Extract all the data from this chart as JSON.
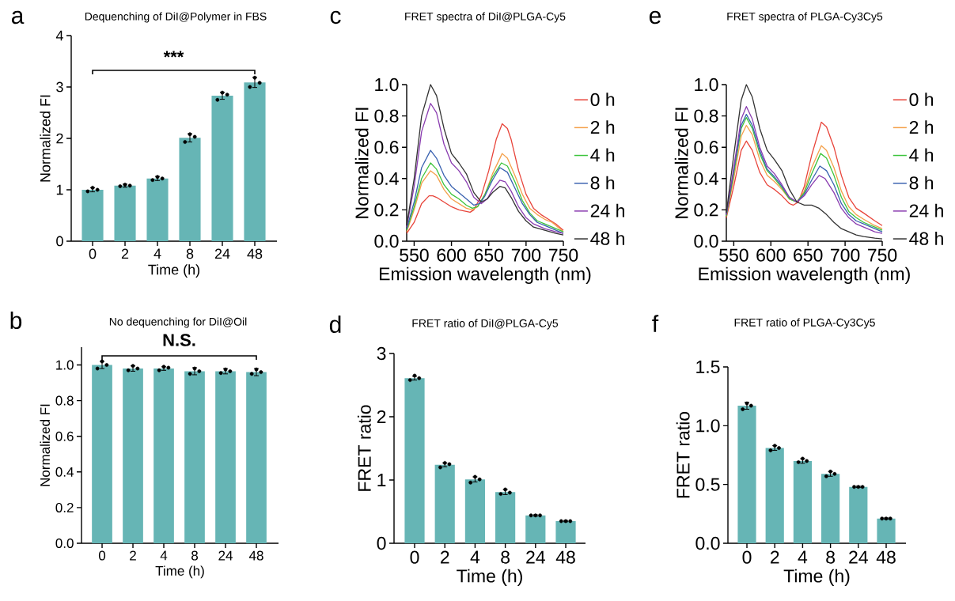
{
  "chart_data": [
    {
      "type": "bar",
      "title": "Dequenching of DiI@Polymer in FBS",
      "xlabel": "Time (h)",
      "ylabel": "Normalized FI",
      "categories": [
        "0",
        "2",
        "4",
        "8",
        "24",
        "48"
      ],
      "ylim": [
        0,
        4
      ],
      "yticks": [
        0,
        1,
        2,
        3,
        4
      ],
      "annotations": [
        "a",
        "***"
      ],
      "series": [
        {
          "type": "bar",
          "color": "#66b5b5",
          "values": [
            1.0,
            1.08,
            1.22,
            2.01,
            2.83,
            3.09
          ],
          "errors": [
            0.04,
            0.03,
            0.04,
            0.08,
            0.07,
            0.1
          ]
        },
        {
          "type": "scatter",
          "color": "#000000",
          "x": [
            "0",
            "0",
            "0",
            "2",
            "2",
            "2",
            "4",
            "4",
            "4",
            "8",
            "8",
            "8",
            "24",
            "24",
            "24",
            "48",
            "48",
            "48"
          ],
          "values": [
            0.97,
            1.0,
            1.04,
            1.07,
            1.08,
            1.1,
            1.19,
            1.22,
            1.25,
            1.93,
            2.03,
            2.08,
            2.75,
            2.85,
            2.89,
            3.0,
            3.08,
            3.18
          ]
        }
      ]
    },
    {
      "type": "line",
      "title": "FRET spectra of DiI@PLGA-Cy5",
      "xlabel": "Emission wavelength (nm)",
      "ylabel": "Normalized FI",
      "xlim": [
        540,
        750
      ],
      "xticks": [
        550,
        600,
        650,
        700,
        750
      ],
      "ylim": [
        0,
        1
      ],
      "yticks": [
        {
          "value": 0,
          "label": "0.0"
        },
        {
          "value": 0.2,
          "label": "0.2"
        },
        {
          "value": 0.4,
          "label": "0.4"
        },
        {
          "value": 0.6,
          "label": "0.6"
        },
        {
          "value": 0.8,
          "label": "0.8"
        },
        {
          "value": 1,
          "label": "1.0"
        }
      ],
      "legend": "right",
      "annotations": [
        "c"
      ],
      "series": [
        {
          "name": "0 h",
          "color": "#e8443a",
          "x": [
            540,
            550,
            560,
            570,
            575,
            580,
            590,
            600,
            610,
            620,
            625,
            630,
            640,
            650,
            660,
            668,
            675,
            680,
            690,
            700,
            710,
            720,
            730,
            740,
            750
          ],
          "values": [
            0.05,
            0.12,
            0.24,
            0.29,
            0.29,
            0.28,
            0.25,
            0.22,
            0.2,
            0.19,
            0.185,
            0.2,
            0.29,
            0.45,
            0.65,
            0.75,
            0.72,
            0.65,
            0.45,
            0.3,
            0.21,
            0.17,
            0.14,
            0.11,
            0.07
          ]
        },
        {
          "name": "2 h",
          "color": "#f4a04a",
          "x": [
            540,
            550,
            560,
            572,
            580,
            590,
            600,
            610,
            620,
            628,
            635,
            645,
            655,
            668,
            675,
            685,
            695,
            705,
            715,
            725,
            735,
            750
          ],
          "values": [
            0.06,
            0.2,
            0.37,
            0.45,
            0.42,
            0.33,
            0.27,
            0.24,
            0.21,
            0.2,
            0.22,
            0.3,
            0.43,
            0.56,
            0.53,
            0.42,
            0.3,
            0.21,
            0.17,
            0.14,
            0.12,
            0.06
          ]
        },
        {
          "name": "4 h",
          "color": "#3cc43c",
          "x": [
            540,
            550,
            560,
            572,
            580,
            590,
            600,
            610,
            620,
            628,
            635,
            645,
            655,
            667,
            675,
            685,
            695,
            705,
            715,
            725,
            740,
            750
          ],
          "values": [
            0.07,
            0.22,
            0.4,
            0.5,
            0.46,
            0.36,
            0.3,
            0.27,
            0.23,
            0.21,
            0.22,
            0.3,
            0.41,
            0.5,
            0.48,
            0.38,
            0.26,
            0.18,
            0.13,
            0.11,
            0.08,
            0.06
          ]
        },
        {
          "name": "8 h",
          "color": "#3a62b0",
          "x": [
            540,
            550,
            560,
            572,
            580,
            590,
            600,
            610,
            620,
            630,
            638,
            645,
            655,
            665,
            675,
            685,
            695,
            705,
            715,
            725,
            740,
            750
          ],
          "values": [
            0.08,
            0.25,
            0.47,
            0.58,
            0.53,
            0.42,
            0.35,
            0.31,
            0.27,
            0.23,
            0.24,
            0.29,
            0.39,
            0.47,
            0.44,
            0.34,
            0.24,
            0.17,
            0.12,
            0.1,
            0.07,
            0.05
          ]
        },
        {
          "name": "24 h",
          "color": "#8a3cb0",
          "x": [
            540,
            550,
            560,
            572,
            580,
            590,
            600,
            610,
            620,
            630,
            640,
            648,
            655,
            665,
            672,
            680,
            690,
            700,
            710,
            725,
            740,
            750
          ],
          "values": [
            0.09,
            0.35,
            0.7,
            0.88,
            0.82,
            0.62,
            0.5,
            0.45,
            0.38,
            0.28,
            0.24,
            0.27,
            0.33,
            0.39,
            0.38,
            0.32,
            0.22,
            0.15,
            0.11,
            0.08,
            0.06,
            0.05
          ]
        },
        {
          "name": "48 h",
          "color": "#333333",
          "x": [
            540,
            550,
            560,
            572,
            580,
            590,
            600,
            610,
            620,
            630,
            640,
            648,
            655,
            665,
            672,
            680,
            690,
            700,
            710,
            725,
            740,
            750
          ],
          "values": [
            0.1,
            0.4,
            0.8,
            1.0,
            0.93,
            0.72,
            0.56,
            0.5,
            0.43,
            0.31,
            0.25,
            0.27,
            0.31,
            0.35,
            0.34,
            0.28,
            0.19,
            0.13,
            0.09,
            0.07,
            0.05,
            0.04
          ]
        }
      ]
    },
    {
      "type": "line",
      "title": "FRET spectra of PLGA-Cy3Cy5",
      "xlabel": "Emission wavelength (nm)",
      "ylabel": "Normalized FI",
      "xlim": [
        540,
        750
      ],
      "xticks": [
        550,
        600,
        650,
        700,
        750
      ],
      "ylim": [
        0,
        1
      ],
      "yticks": [
        {
          "value": 0,
          "label": "0.0"
        },
        {
          "value": 0.2,
          "label": "0.2"
        },
        {
          "value": 0.4,
          "label": "0.4"
        },
        {
          "value": 0.6,
          "label": "0.6"
        },
        {
          "value": 0.8,
          "label": "0.8"
        },
        {
          "value": 1,
          "label": "1.0"
        }
      ],
      "legend": "right",
      "annotations": [
        "e"
      ],
      "series": [
        {
          "name": "0 h",
          "color": "#e8443a",
          "x": [
            540,
            550,
            560,
            567,
            575,
            585,
            595,
            605,
            615,
            625,
            630,
            637,
            645,
            655,
            668,
            675,
            685,
            695,
            705,
            715,
            725,
            740,
            750
          ],
          "values": [
            0.15,
            0.35,
            0.58,
            0.64,
            0.58,
            0.44,
            0.36,
            0.33,
            0.29,
            0.24,
            0.23,
            0.25,
            0.35,
            0.55,
            0.76,
            0.73,
            0.6,
            0.42,
            0.28,
            0.21,
            0.18,
            0.13,
            0.1
          ]
        },
        {
          "name": "2 h",
          "color": "#f4a04a",
          "x": [
            540,
            550,
            560,
            567,
            575,
            585,
            595,
            605,
            615,
            625,
            635,
            645,
            655,
            668,
            675,
            685,
            695,
            705,
            715,
            725,
            740,
            750
          ],
          "values": [
            0.16,
            0.4,
            0.67,
            0.74,
            0.68,
            0.52,
            0.42,
            0.38,
            0.33,
            0.27,
            0.25,
            0.32,
            0.47,
            0.61,
            0.58,
            0.47,
            0.32,
            0.22,
            0.17,
            0.14,
            0.1,
            0.08
          ]
        },
        {
          "name": "4 h",
          "color": "#3cc43c",
          "x": [
            540,
            550,
            560,
            567,
            575,
            585,
            595,
            605,
            615,
            625,
            635,
            645,
            655,
            667,
            675,
            685,
            695,
            705,
            715,
            725,
            740,
            750
          ],
          "values": [
            0.16,
            0.43,
            0.72,
            0.79,
            0.72,
            0.56,
            0.45,
            0.4,
            0.34,
            0.27,
            0.25,
            0.31,
            0.43,
            0.56,
            0.53,
            0.42,
            0.28,
            0.19,
            0.15,
            0.12,
            0.09,
            0.07
          ]
        },
        {
          "name": "8 h",
          "color": "#3a62b0",
          "x": [
            540,
            550,
            560,
            567,
            575,
            585,
            595,
            605,
            615,
            625,
            635,
            645,
            655,
            666,
            675,
            685,
            695,
            705,
            715,
            725,
            740,
            750
          ],
          "values": [
            0.17,
            0.45,
            0.74,
            0.81,
            0.74,
            0.58,
            0.46,
            0.41,
            0.35,
            0.28,
            0.25,
            0.3,
            0.39,
            0.48,
            0.45,
            0.36,
            0.24,
            0.17,
            0.13,
            0.11,
            0.08,
            0.06
          ]
        },
        {
          "name": "24 h",
          "color": "#8a3cb0",
          "x": [
            540,
            550,
            560,
            567,
            575,
            585,
            595,
            605,
            615,
            625,
            635,
            645,
            655,
            665,
            673,
            685,
            695,
            705,
            715,
            725,
            740,
            750
          ],
          "values": [
            0.17,
            0.47,
            0.78,
            0.86,
            0.78,
            0.6,
            0.48,
            0.43,
            0.36,
            0.28,
            0.25,
            0.29,
            0.36,
            0.42,
            0.4,
            0.31,
            0.21,
            0.15,
            0.11,
            0.09,
            0.06,
            0.05
          ]
        },
        {
          "name": "48 h",
          "color": "#333333",
          "x": [
            540,
            550,
            560,
            567,
            575,
            585,
            595,
            605,
            615,
            625,
            635,
            645,
            655,
            665,
            675,
            685,
            695,
            705,
            715,
            725,
            740,
            750
          ],
          "values": [
            0.18,
            0.55,
            0.9,
            1.0,
            0.92,
            0.72,
            0.58,
            0.52,
            0.45,
            0.33,
            0.25,
            0.23,
            0.23,
            0.21,
            0.17,
            0.12,
            0.08,
            0.06,
            0.04,
            0.03,
            0.02,
            0.015
          ]
        }
      ]
    },
    {
      "type": "bar",
      "title": "No dequenching for DiI@Oil",
      "xlabel": "Time (h)",
      "ylabel": "Normalized FI",
      "categories": [
        "0",
        "2",
        "4",
        "8",
        "24",
        "48"
      ],
      "ylim": [
        0,
        1.1
      ],
      "yticks": [
        {
          "value": 0,
          "label": "0.0"
        },
        {
          "value": 0.2,
          "label": "0.2"
        },
        {
          "value": 0.4,
          "label": "0.4"
        },
        {
          "value": 0.6,
          "label": "0.6"
        },
        {
          "value": 0.8,
          "label": "0.8"
        },
        {
          "value": 1,
          "label": "1.0"
        }
      ],
      "annotations": [
        "b",
        "N.S."
      ],
      "series": [
        {
          "type": "bar",
          "color": "#66b5b5",
          "values": [
            1.0,
            0.98,
            0.98,
            0.965,
            0.965,
            0.96
          ],
          "errors": [
            0.02,
            0.015,
            0.01,
            0.02,
            0.015,
            0.02
          ]
        },
        {
          "type": "scatter",
          "color": "#000000",
          "x": [
            "0",
            "0",
            "0",
            "2",
            "2",
            "2",
            "4",
            "4",
            "4",
            "8",
            "8",
            "8",
            "24",
            "24",
            "24",
            "48",
            "48",
            "48"
          ],
          "values": [
            0.98,
            1.0,
            1.02,
            0.97,
            0.98,
            0.995,
            0.97,
            0.985,
            0.99,
            0.95,
            0.965,
            0.98,
            0.955,
            0.965,
            0.975,
            0.95,
            0.96,
            0.975
          ]
        }
      ]
    },
    {
      "type": "bar",
      "title": "FRET ratio of DiI@PLGA-Cy5",
      "xlabel": "Time (h)",
      "ylabel": "FRET ratio",
      "categories": [
        "0",
        "2",
        "4",
        "8",
        "24",
        "48"
      ],
      "ylim": [
        0,
        3
      ],
      "yticks": [
        0,
        1,
        2,
        3
      ],
      "annotations": [
        "d"
      ],
      "series": [
        {
          "type": "bar",
          "color": "#66b5b5",
          "values": [
            2.61,
            1.24,
            1.01,
            0.81,
            0.44,
            0.35
          ],
          "errors": [
            0.03,
            0.03,
            0.04,
            0.04,
            0.01,
            0.01
          ]
        },
        {
          "type": "scatter",
          "color": "#000000",
          "x": [
            "0",
            "0",
            "0",
            "2",
            "2",
            "2",
            "4",
            "4",
            "4",
            "8",
            "8",
            "8",
            "24",
            "24",
            "24",
            "48",
            "48",
            "48"
          ],
          "values": [
            2.58,
            2.61,
            2.65,
            1.2,
            1.25,
            1.27,
            0.96,
            1.01,
            1.05,
            0.78,
            0.8,
            0.85,
            0.44,
            0.44,
            0.44,
            0.35,
            0.35,
            0.35
          ]
        }
      ]
    },
    {
      "type": "bar",
      "title": "FRET ratio of PLGA-Cy3Cy5",
      "xlabel": "Time (h)",
      "ylabel": "FRET ratio",
      "categories": [
        "0",
        "2",
        "4",
        "8",
        "24",
        "48"
      ],
      "ylim": [
        0,
        1.5
      ],
      "yticks": [
        {
          "value": 0,
          "label": "0.0"
        },
        {
          "value": 0.5,
          "label": "0.5"
        },
        {
          "value": 1,
          "label": "1.0"
        },
        {
          "value": 1.5,
          "label": "1.5"
        }
      ],
      "annotations": [
        "f"
      ],
      "series": [
        {
          "type": "bar",
          "color": "#66b5b5",
          "values": [
            1.17,
            0.81,
            0.7,
            0.59,
            0.48,
            0.21
          ],
          "errors": [
            0.03,
            0.02,
            0.02,
            0.02,
            0.005,
            0.005
          ]
        },
        {
          "type": "scatter",
          "color": "#000000",
          "x": [
            "0",
            "0",
            "0",
            "2",
            "2",
            "2",
            "4",
            "4",
            "4",
            "8",
            "8",
            "8",
            "24",
            "24",
            "24",
            "48",
            "48",
            "48"
          ],
          "values": [
            1.14,
            1.17,
            1.19,
            0.79,
            0.81,
            0.83,
            0.69,
            0.7,
            0.72,
            0.57,
            0.59,
            0.61,
            0.48,
            0.48,
            0.48,
            0.21,
            0.21,
            0.21
          ]
        }
      ]
    }
  ]
}
